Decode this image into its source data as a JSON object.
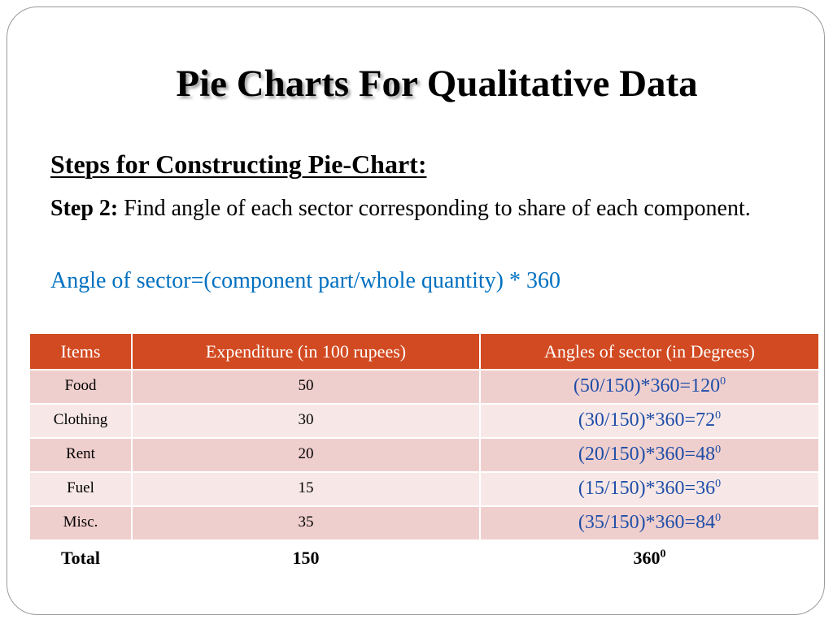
{
  "slide": {
    "title_part1": "Pie Charts For",
    "title_part2": "Qualitative Data",
    "subtitle": "Steps for Constructing Pie-Chart:",
    "step_label": "Step 2:",
    "step_body": "Find angle of each sector corresponding to share of each component.",
    "formula": "Angle of sector=(component part/whole quantity) * 360"
  },
  "table": {
    "headers": [
      "Items",
      "Expenditure (in 100 rupees)",
      "Angles of sector (in Degrees)"
    ],
    "rows": [
      {
        "item": "Food",
        "expenditure": "50",
        "angle": "(50/150)*360=120",
        "angle_sup": "0"
      },
      {
        "item": "Clothing",
        "expenditure": "30",
        "angle": "(30/150)*360=72",
        "angle_sup": "0"
      },
      {
        "item": "Rent",
        "expenditure": "20",
        "angle": "(20/150)*360=48",
        "angle_sup": "0"
      },
      {
        "item": "Fuel",
        "expenditure": "15",
        "angle": "(15/150)*360=36",
        "angle_sup": "0"
      },
      {
        "item": "Misc.",
        "expenditure": "35",
        "angle": "(35/150)*360=84",
        "angle_sup": "0"
      }
    ],
    "total": {
      "item": "Total",
      "expenditure": "150",
      "angle": "360",
      "angle_sup": "0"
    }
  },
  "colors": {
    "header_bg": "#d24a21",
    "row_odd": "#efcfcd",
    "row_even": "#f7e8e7",
    "formula_text": "#0070c0",
    "angle_text": "#1f4ea8"
  }
}
